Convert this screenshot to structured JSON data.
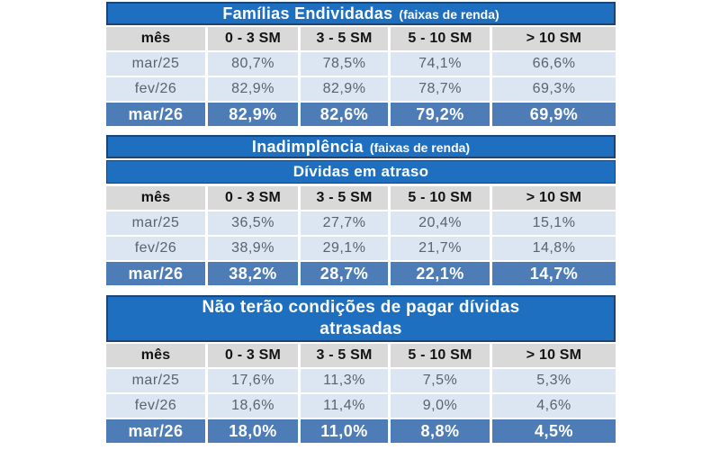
{
  "colors": {
    "page_bg": "#ffffff",
    "title_bar_bg": "#1e6fc0",
    "title_bar_border": "#1c4576",
    "title_text": "#ffffff",
    "header_bg": "#d9d9d9",
    "header_text": "#131313",
    "data_row_bg": "#dce6f2",
    "data_row_text": "#5a6170",
    "highlight_row_bg": "#4e7cb6",
    "highlight_row_text": "#ffffff"
  },
  "chart_data": [
    {
      "type": "table",
      "title": "Famílias Endividadas",
      "title_note": "(faixas de renda)",
      "columns": [
        "mês",
        "0 - 3 SM",
        "3 - 5 SM",
        "5 - 10 SM",
        "> 10 SM"
      ],
      "rows": [
        {
          "label": "mar/25",
          "values": [
            "80,7%",
            "78,5%",
            "74,1%",
            "66,6%"
          ],
          "highlighted": false
        },
        {
          "label": "fev/26",
          "values": [
            "82,9%",
            "82,9%",
            "78,7%",
            "69,3%"
          ],
          "highlighted": false
        },
        {
          "label": "mar/26",
          "values": [
            "82,9%",
            "82,6%",
            "79,2%",
            "69,9%"
          ],
          "highlighted": true
        }
      ]
    },
    {
      "type": "table",
      "title": "Inadimplência",
      "title_note": "(faixas de renda)",
      "subtitle": "Dívidas em atraso",
      "columns": [
        "mês",
        "0 - 3 SM",
        "3 - 5 SM",
        "5 - 10 SM",
        "> 10 SM"
      ],
      "rows": [
        {
          "label": "mar/25",
          "values": [
            "36,5%",
            "27,7%",
            "20,4%",
            "15,1%"
          ],
          "highlighted": false
        },
        {
          "label": "fev/26",
          "values": [
            "38,9%",
            "29,1%",
            "21,7%",
            "14,8%"
          ],
          "highlighted": false
        },
        {
          "label": "mar/26",
          "values": [
            "38,2%",
            "28,7%",
            "22,1%",
            "14,7%"
          ],
          "highlighted": true
        }
      ]
    },
    {
      "type": "table",
      "title": "Não terão condições de pagar dívidas atrasadas",
      "columns": [
        "mês",
        "0 - 3 SM",
        "3 - 5 SM",
        "5 - 10 SM",
        "> 10 SM"
      ],
      "rows": [
        {
          "label": "mar/25",
          "values": [
            "17,6%",
            "11,3%",
            "7,5%",
            "5,3%"
          ],
          "highlighted": false
        },
        {
          "label": "fev/26",
          "values": [
            "18,6%",
            "11,4%",
            "9,0%",
            "4,6%"
          ],
          "highlighted": false
        },
        {
          "label": "mar/26",
          "values": [
            "18,0%",
            "11,0%",
            "8,8%",
            "4,5%"
          ],
          "highlighted": true
        }
      ]
    }
  ]
}
